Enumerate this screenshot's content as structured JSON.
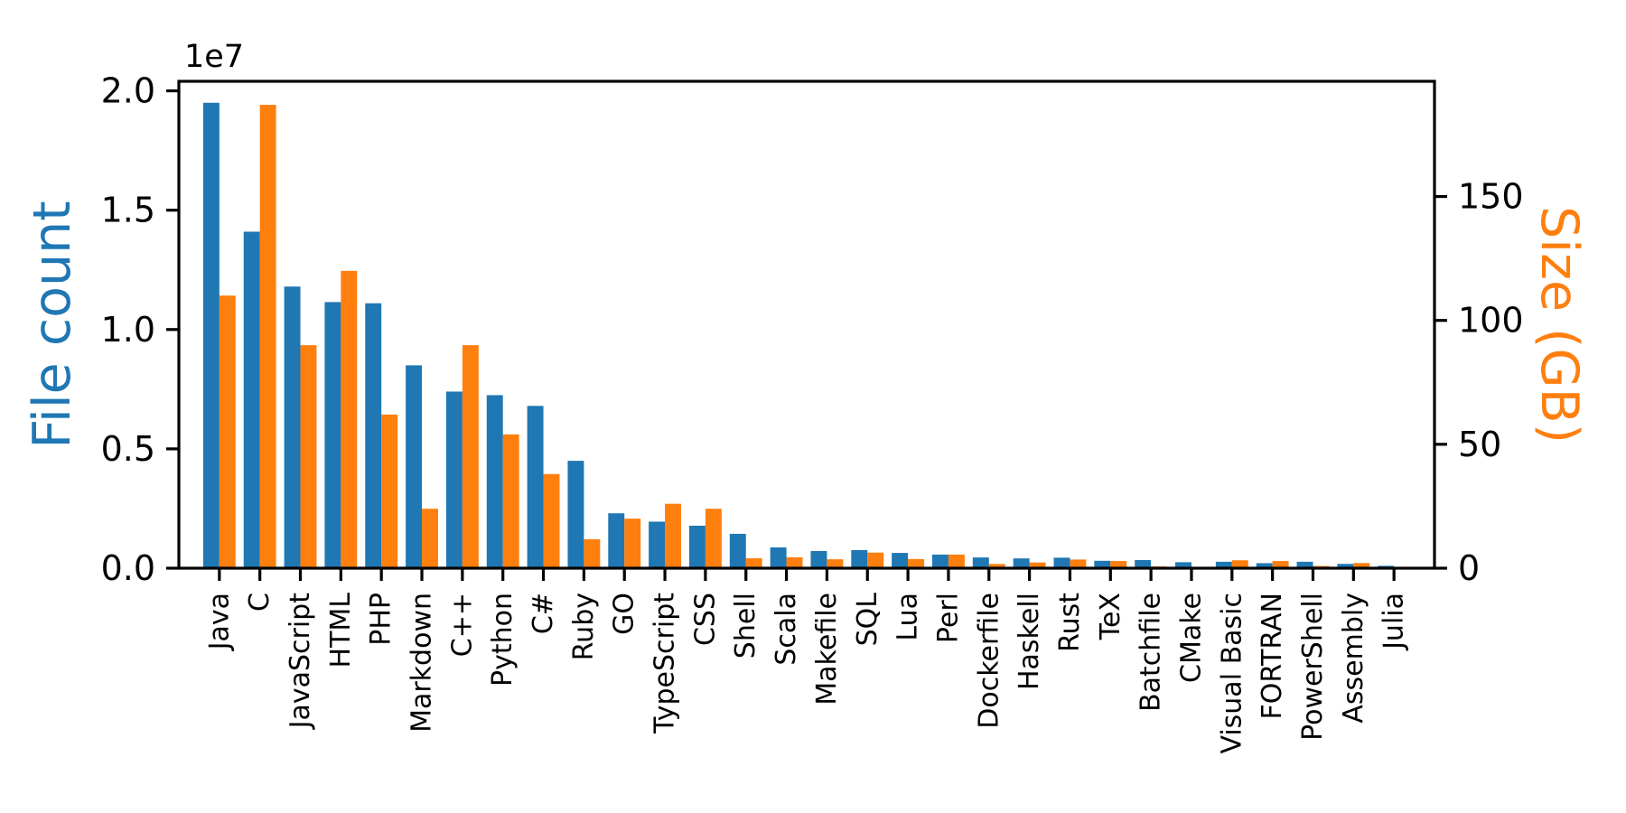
{
  "chart_data": {
    "type": "bar",
    "title": "",
    "description": "Dual-axis grouped bar chart of programming languages: file count (blue, left axis, 1e7 scale) and size in GB (orange, right axis)",
    "categories": [
      "Java",
      "C",
      "JavaScript",
      "HTML",
      "PHP",
      "Markdown",
      "C++",
      "Python",
      "C#",
      "Ruby",
      "GO",
      "TypeScript",
      "CSS",
      "Shell",
      "Scala",
      "Makefile",
      "SQL",
      "Lua",
      "Perl",
      "Dockerfile",
      "Haskell",
      "Rust",
      "TeX",
      "Batchfile",
      "CMake",
      "Visual Basic",
      "FORTRAN",
      "PowerShell",
      "Assembly",
      "Julia"
    ],
    "series": [
      {
        "name": "File count",
        "axis": "left",
        "color": "#1f77b4",
        "values": [
          19500000,
          14100000,
          11800000,
          11150000,
          11100000,
          8500000,
          7400000,
          7250000,
          6800000,
          4500000,
          2300000,
          1950000,
          1780000,
          1440000,
          870000,
          720000,
          760000,
          640000,
          570000,
          450000,
          410000,
          440000,
          310000,
          340000,
          250000,
          270000,
          210000,
          270000,
          180000,
          100000
        ]
      },
      {
        "name": "Size (GB)",
        "axis": "right",
        "color": "#ff7f0e",
        "values": [
          110,
          187,
          90,
          120,
          62,
          24,
          90,
          54,
          38,
          11.7,
          20,
          26,
          24,
          4,
          4.4,
          3.6,
          6.3,
          3.7,
          5.5,
          1.7,
          2.3,
          3.5,
          2.9,
          0.7,
          0.5,
          3.2,
          2.9,
          0.9,
          2.1,
          0.4
        ]
      }
    ],
    "left_axis": {
      "label": "File count",
      "label_color": "#1f77b4",
      "offset_label": "1e7",
      "tick_labels": [
        "0.0",
        "0.5",
        "1.0",
        "1.5",
        "2.0"
      ],
      "tick_values": [
        0,
        5000000,
        10000000,
        15000000,
        20000000
      ],
      "max": 20400000
    },
    "right_axis": {
      "label": "Size (GB)",
      "label_color": "#ff7f0e",
      "tick_labels": [
        "0",
        "50",
        "100",
        "150"
      ],
      "tick_values": [
        0,
        50,
        100,
        150
      ],
      "max": 196.5
    },
    "x_axis": {
      "tick_label_rotation": -90
    },
    "grid": false,
    "legend": null,
    "colors": {
      "spine": "#000000",
      "tick_text": "#000000",
      "background": "#ffffff"
    }
  }
}
